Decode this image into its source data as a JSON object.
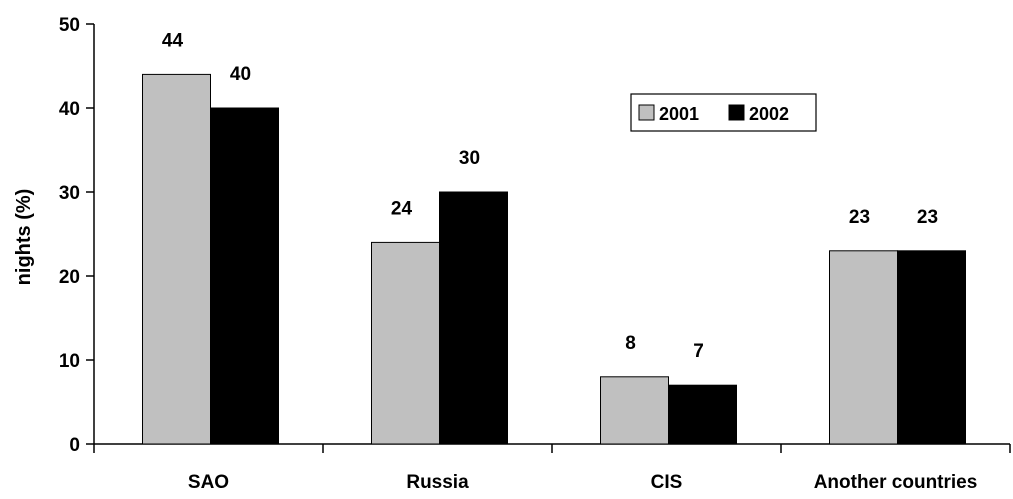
{
  "chart_data": {
    "type": "bar",
    "title": "",
    "xlabel": "",
    "ylabel": "nights (%)",
    "ylim": [
      0,
      50
    ],
    "yticks": [
      0,
      10,
      20,
      30,
      40,
      50
    ],
    "categories": [
      "SAO",
      "Russia",
      "CIS",
      "Another countries"
    ],
    "series": [
      {
        "name": "2001",
        "values": [
          44,
          24,
          8,
          23
        ],
        "color": "#c0c0c0"
      },
      {
        "name": "2002",
        "values": [
          40,
          30,
          7,
          23
        ],
        "color": "#000000"
      }
    ],
    "data_labels": true,
    "legend": "inside, upper right",
    "grid": false
  }
}
